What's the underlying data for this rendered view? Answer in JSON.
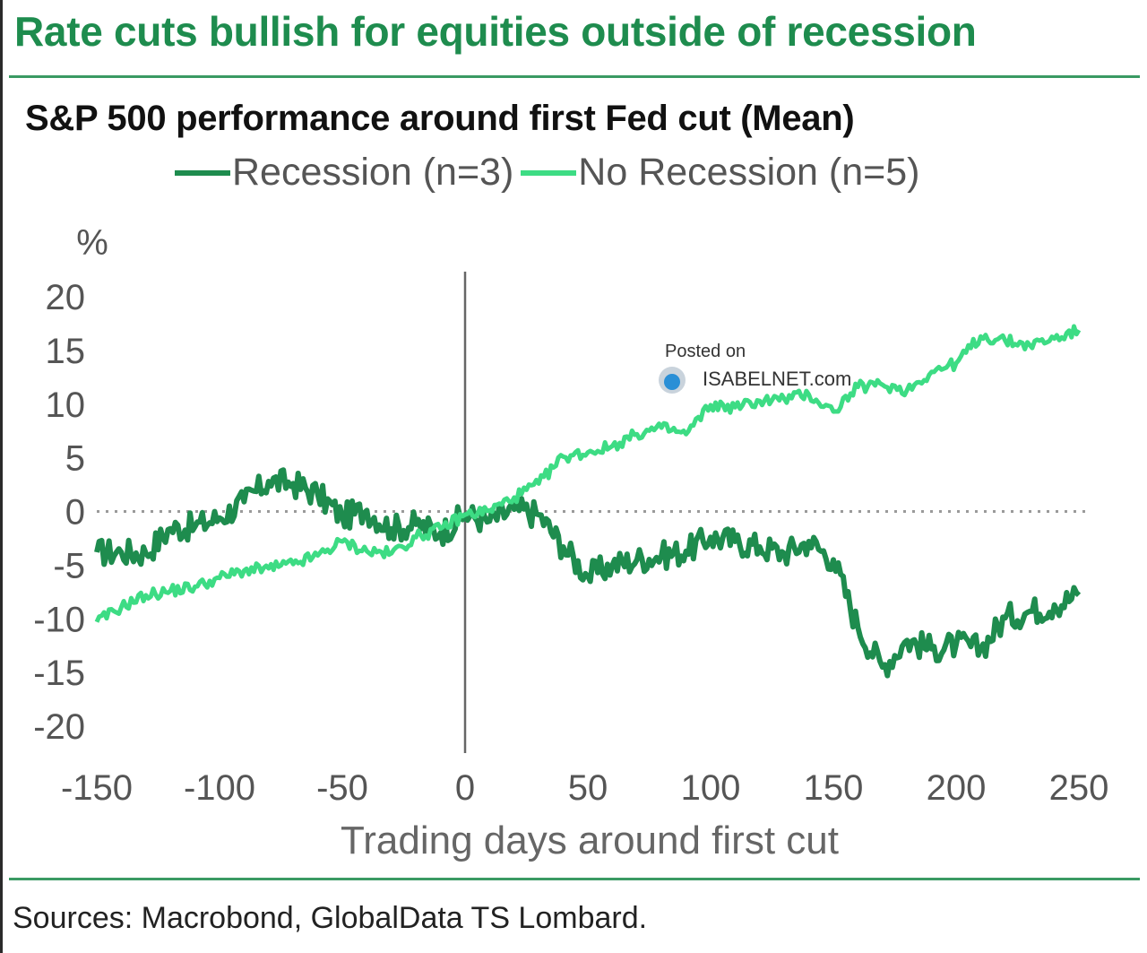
{
  "header": {
    "title": "Rate cuts bullish for equities outside of recession",
    "subtitle": "S&P 500 performance around first Fed cut (Mean)"
  },
  "legend": [
    {
      "label": "Recession (n=3)",
      "color": "#1e8c4e"
    },
    {
      "label": "No Recession (n=5)",
      "color": "#3ddc84"
    }
  ],
  "watermark": {
    "line1": "Posted on",
    "line2": "ISABELNET.com"
  },
  "footer": {
    "source": "Sources:  Macrobond, GlobalData TS Lombard."
  },
  "chart_data": {
    "type": "line",
    "title": "S&P 500 performance around first Fed cut (Mean)",
    "xlabel": "Trading days around first cut",
    "ylabel": "%",
    "xlim": [
      -150,
      250
    ],
    "ylim": [
      -20,
      20
    ],
    "xticks": [
      -150,
      -100,
      -50,
      0,
      50,
      100,
      150,
      200,
      250
    ],
    "yticks": [
      20,
      15,
      10,
      5,
      0,
      -5,
      -10,
      -15,
      -20
    ],
    "zero_line": "dotted",
    "vertical_marker_x": 0,
    "grid": false,
    "legend_position": "top-center",
    "x": [
      -150,
      -140,
      -130,
      -120,
      -110,
      -100,
      -90,
      -80,
      -70,
      -60,
      -50,
      -40,
      -30,
      -20,
      -10,
      0,
      10,
      20,
      30,
      40,
      50,
      60,
      70,
      80,
      90,
      100,
      110,
      120,
      130,
      140,
      150,
      160,
      170,
      180,
      190,
      200,
      210,
      220,
      230,
      240,
      250
    ],
    "series": [
      {
        "name": "Recession (n=3)",
        "color": "#1e8c4e",
        "values": [
          -3.8,
          -3.8,
          -3.9,
          -1.6,
          -1.4,
          -0.6,
          0.9,
          2.8,
          2.6,
          1.6,
          -0.5,
          0.1,
          -1.6,
          -1.2,
          -2.0,
          -0.3,
          -0.9,
          0.2,
          -0.3,
          -3.3,
          -6.0,
          -5.0,
          -4.5,
          -4.1,
          -3.7,
          -2.4,
          -2.8,
          -3.3,
          -3.9,
          -2.8,
          -4.5,
          -10.8,
          -14.5,
          -12.0,
          -12.8,
          -12.4,
          -12.8,
          -9.9,
          -9.3,
          -8.7,
          -7.8
        ]
      },
      {
        "name": "No Recession (n=5)",
        "color": "#3ddc84",
        "values": [
          -10.3,
          -8.9,
          -7.8,
          -7.4,
          -7.0,
          -6.2,
          -5.5,
          -5.3,
          -4.9,
          -4.1,
          -2.8,
          -3.7,
          -3.9,
          -2.4,
          -1.6,
          -0.3,
          0.1,
          1.3,
          2.6,
          5.1,
          5.5,
          6.1,
          7.2,
          7.8,
          7.2,
          9.9,
          9.7,
          10.3,
          10.5,
          10.9,
          9.3,
          11.6,
          11.8,
          11.3,
          13.0,
          13.8,
          16.3,
          15.9,
          15.5,
          16.1,
          16.9
        ]
      }
    ]
  }
}
